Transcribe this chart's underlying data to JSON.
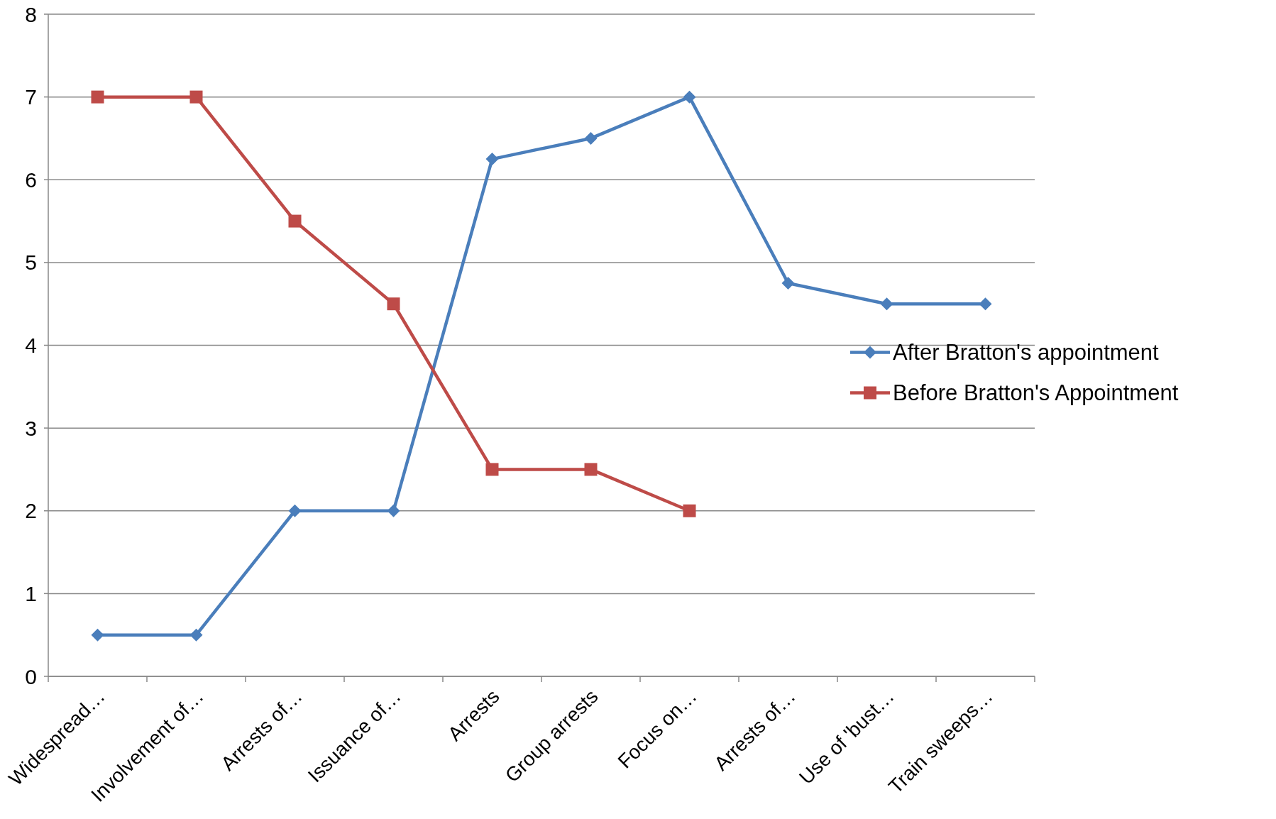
{
  "chart_data": {
    "type": "line",
    "categories": [
      "Widespread…",
      "Involvement of…",
      "Arrests of…",
      "Issuance of…",
      "Arrests",
      "Group arrests",
      "Focus on…",
      "Arrests of…",
      "Use of 'bust…",
      "Train sweeps…"
    ],
    "series": [
      {
        "name": "After Bratton's appointment",
        "color": "#4a7ebb",
        "marker": "diamond",
        "values": [
          0.5,
          0.5,
          2,
          2,
          6.25,
          6.5,
          7,
          4.75,
          4.5,
          4.5
        ]
      },
      {
        "name": "Before Bratton's Appointment",
        "color": "#be4b48",
        "marker": "square",
        "values": [
          7,
          7,
          5.5,
          4.5,
          2.5,
          2.5,
          2,
          null,
          null,
          null
        ]
      }
    ],
    "ylim": [
      0,
      8
    ],
    "yticks": [
      0,
      1,
      2,
      3,
      4,
      5,
      6,
      7,
      8
    ],
    "grid": "y",
    "legend": "right",
    "line_style": "solid"
  }
}
